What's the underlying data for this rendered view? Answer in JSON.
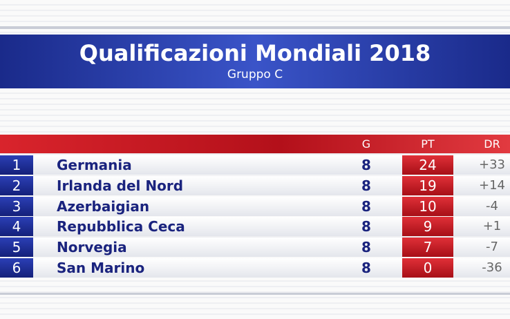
{
  "header": {
    "title": "Qualificazioni Mondiali 2018",
    "subtitle": "Gruppo C"
  },
  "table": {
    "columns": [
      "G",
      "PT",
      "DR"
    ],
    "rows": [
      [
        1,
        "Germania",
        8,
        24,
        "+33"
      ],
      [
        2,
        "Irlanda del Nord",
        8,
        19,
        "+14"
      ],
      [
        3,
        "Azerbaigian",
        8,
        10,
        "-4"
      ],
      [
        4,
        "Repubblica Ceca",
        8,
        9,
        "+1"
      ],
      [
        5,
        "Norvegia",
        8,
        7,
        "-7"
      ],
      [
        6,
        "San Marino",
        8,
        0,
        "-36"
      ]
    ]
  }
}
